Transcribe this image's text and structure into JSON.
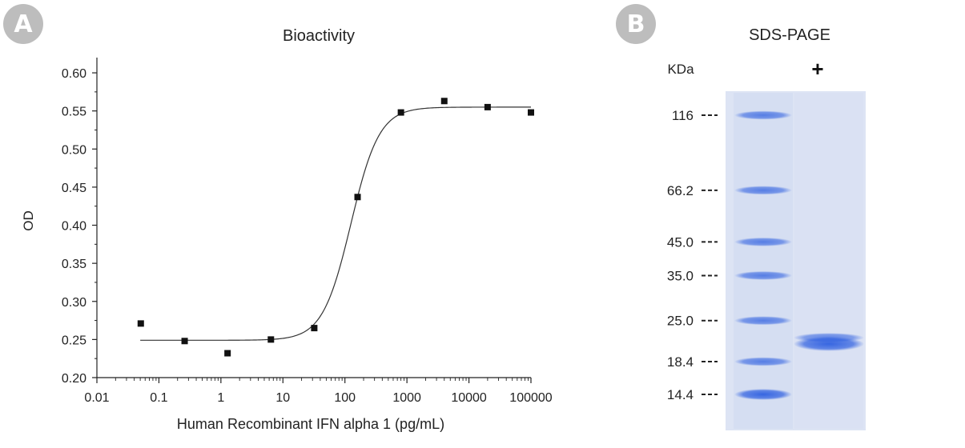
{
  "panel_a": {
    "badge": "A"
  },
  "panel_b": {
    "badge": "B",
    "title": "SDS-PAGE",
    "unit_label": "KDa",
    "lane_label": "+",
    "markers": [
      {
        "label": "116",
        "kda": 116
      },
      {
        "label": "66.2",
        "kda": 66.2
      },
      {
        "label": "45.0",
        "kda": 45.0
      },
      {
        "label": "35.0",
        "kda": 35.0
      },
      {
        "label": "25.0",
        "kda": 25.0
      },
      {
        "label": "18.4",
        "kda": 18.4
      },
      {
        "label": "14.4",
        "kda": 14.4
      }
    ],
    "sample_bands_kda": [
      22,
      21
    ],
    "colors": {
      "gel_bg": "#dde4f4",
      "band": "#2e5fe0"
    }
  },
  "chart_data": {
    "type": "scatter",
    "title": "Bioactivity",
    "xlabel": "Human Recombinant IFN alpha 1 (pg/mL)",
    "ylabel": "OD",
    "xscale": "log",
    "xlim": [
      0.01,
      100000
    ],
    "ylim": [
      0.2,
      0.62
    ],
    "x_ticks": [
      0.01,
      0.1,
      1,
      10,
      100,
      1000,
      10000,
      100000
    ],
    "x_tick_labels": [
      "0.01",
      "0.1",
      "1",
      "10",
      "100",
      "1000",
      "10000",
      "100000"
    ],
    "y_ticks": [
      0.2,
      0.25,
      0.3,
      0.35,
      0.4,
      0.45,
      0.5,
      0.55,
      0.6
    ],
    "y_tick_labels": [
      "0.20",
      "0.25",
      "0.30",
      "0.35",
      "0.40",
      "0.45",
      "0.50",
      "0.55",
      "0.60"
    ],
    "points": [
      {
        "x": 0.051,
        "y": 0.271
      },
      {
        "x": 0.26,
        "y": 0.248
      },
      {
        "x": 1.28,
        "y": 0.232
      },
      {
        "x": 6.4,
        "y": 0.25
      },
      {
        "x": 32,
        "y": 0.265
      },
      {
        "x": 160,
        "y": 0.437
      },
      {
        "x": 800,
        "y": 0.548
      },
      {
        "x": 4000,
        "y": 0.563
      },
      {
        "x": 20000,
        "y": 0.555
      },
      {
        "x": 100000,
        "y": 0.548
      }
    ],
    "fit": {
      "model": "4PL",
      "bottom": 0.249,
      "top": 0.555,
      "ec50": 125,
      "hill": 1.9,
      "x_range": [
        0.05,
        100000
      ]
    },
    "grid": false,
    "legend": "none"
  }
}
